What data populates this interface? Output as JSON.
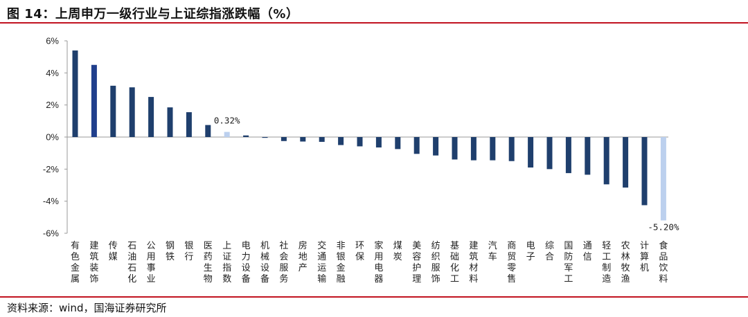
{
  "title": "图 14：上周申万一级行业与上证综指涨跌幅（%）",
  "source": "资料来源：wind，国海证券研究所",
  "colors": {
    "bar": "#1f3f6d",
    "bar_highlight": "#203f8c",
    "bar_index": "#bcd0ee",
    "bar_last": "#bcd0ee",
    "rule": "#c1121f"
  },
  "chart_data": {
    "type": "bar",
    "title": "上周申万一级行业与上证综指涨跌幅（%）",
    "xlabel": "",
    "ylabel": "",
    "ylim": [
      -6,
      6
    ],
    "yticks": [
      6,
      4,
      2,
      0,
      -2,
      -4,
      -6
    ],
    "ytick_labels": [
      "6%",
      "4%",
      "2%",
      "0%",
      "-2%",
      "-4%",
      "-6%"
    ],
    "grid": false,
    "legend": "none",
    "categories": [
      "有色金属",
      "建筑装饰",
      "传媒",
      "石油石化",
      "公用事业",
      "钢铁",
      "银行",
      "医药生物",
      "上证指数",
      "电力设备",
      "机械设备",
      "社会服务",
      "房地产",
      "交通运输",
      "非银金融",
      "环保",
      "家用电器",
      "煤炭",
      "美容护理",
      "纺织服饰",
      "基础化工",
      "建筑材料",
      "汽车",
      "商贸零售",
      "电子",
      "综合",
      "国防军工",
      "通信",
      "轻工制造",
      "农林牧渔",
      "计算机",
      "食品饮料"
    ],
    "values": [
      5.4,
      4.5,
      3.2,
      3.1,
      2.5,
      1.85,
      1.55,
      0.75,
      0.32,
      0.1,
      -0.05,
      -0.25,
      -0.28,
      -0.3,
      -0.5,
      -0.58,
      -0.65,
      -0.75,
      -1.05,
      -1.15,
      -1.4,
      -1.45,
      -1.45,
      -1.5,
      -1.9,
      -2.0,
      -2.25,
      -2.35,
      -2.95,
      -3.15,
      -4.25,
      -5.2
    ],
    "data_labels": [
      {
        "index": 8,
        "text": "0.32%"
      },
      {
        "index": 31,
        "text": "-5.20%"
      }
    ]
  }
}
